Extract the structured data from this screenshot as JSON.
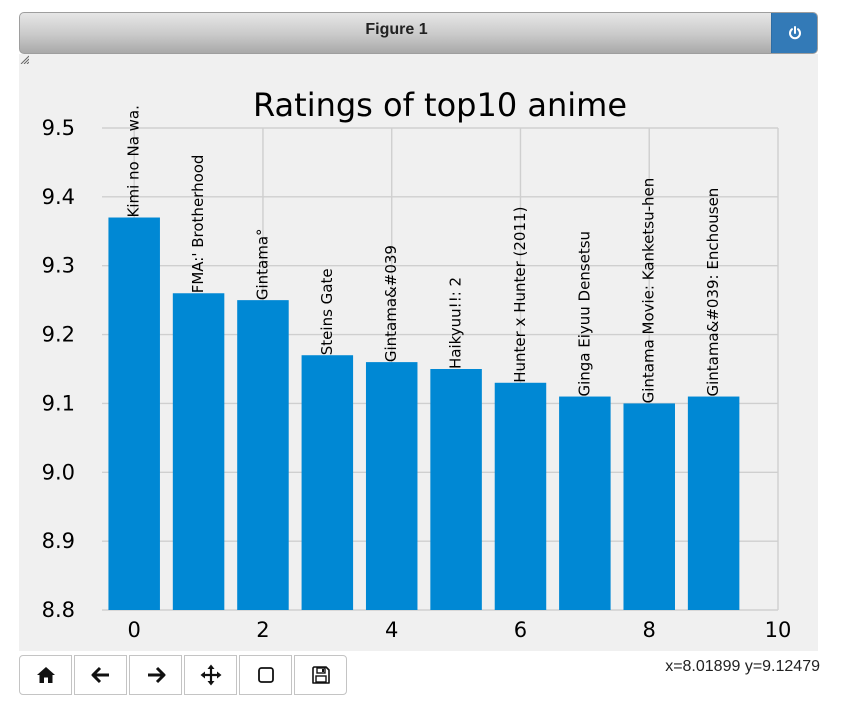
{
  "window": {
    "title": "Figure 1"
  },
  "toolbar": {
    "buttons": [
      {
        "name": "home-button",
        "icon": "home-icon"
      },
      {
        "name": "back-button",
        "icon": "arrow-left-icon"
      },
      {
        "name": "forward-button",
        "icon": "arrow-right-icon"
      },
      {
        "name": "pan-button",
        "icon": "move-icon"
      },
      {
        "name": "zoom-button",
        "icon": "zoom-rect-icon"
      },
      {
        "name": "save-button",
        "icon": "save-icon"
      }
    ]
  },
  "status": {
    "coords": "x=8.01899 y=9.12479"
  },
  "chart_data": {
    "type": "bar",
    "title": "Ratings of top10 anime",
    "xlabel": "",
    "ylabel": "",
    "x": [
      0,
      1,
      2,
      3,
      4,
      5,
      6,
      7,
      8,
      9
    ],
    "labels": [
      "Kimi no Na wa.",
      "FMA:' Brotherhood",
      "Gintama°",
      "Steins Gate",
      "Gintama&#039",
      "Haikyuu!!: 2",
      "Hunter x Hunter (2011)",
      "Ginga Eiyuu Densetsu",
      "Gintama Movie: Kanketsu-hen",
      "Gintama&#039: Enchousen"
    ],
    "values": [
      9.37,
      9.26,
      9.25,
      9.17,
      9.16,
      9.15,
      9.13,
      9.11,
      9.1,
      9.11
    ],
    "xlim": [
      -0.5,
      10
    ],
    "ylim": [
      8.8,
      9.5
    ],
    "xticks": [
      "0",
      "2",
      "4",
      "6",
      "8",
      "10"
    ],
    "yticks": [
      "8.8",
      "8.9",
      "9.0",
      "9.1",
      "9.2",
      "9.3",
      "9.4",
      "9.5"
    ],
    "grid": true,
    "bar_color": "#0088d4",
    "grid_color": "#cfcfcf"
  }
}
